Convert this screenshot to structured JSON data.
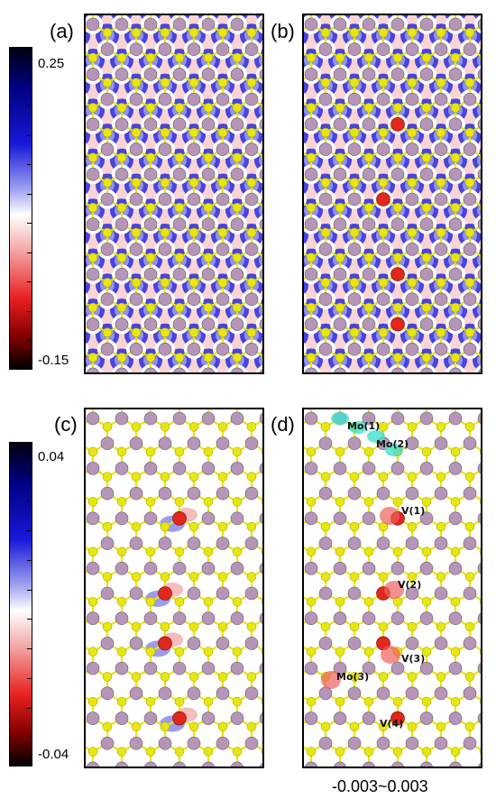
{
  "panels": {
    "a": {
      "label": "(a)"
    },
    "b": {
      "label": "(b)"
    },
    "c": {
      "label": "(c)"
    },
    "d": {
      "label": "(d)"
    }
  },
  "colorbar_top": {
    "max": "0.25",
    "min": "-0.15"
  },
  "colorbar_bottom": {
    "max": "0.04",
    "min": "-0.04"
  },
  "panel_d_sites": [
    "Mo(1)",
    "Mo(2)",
    "V(1)",
    "V(2)",
    "V(3)",
    "Mo(3)",
    "V(4)"
  ],
  "isosurface_range": "-0.003~0.003",
  "colors": {
    "mo_atom": "#b596b8",
    "s_atom": "#e8e60f",
    "v_atom": "#e0281e",
    "positive_density": "#1a1ad0",
    "negative_density": "#f4c0c0",
    "isosurface_cyan": "#40e0d0",
    "isosurface_red": "#ee6060"
  }
}
